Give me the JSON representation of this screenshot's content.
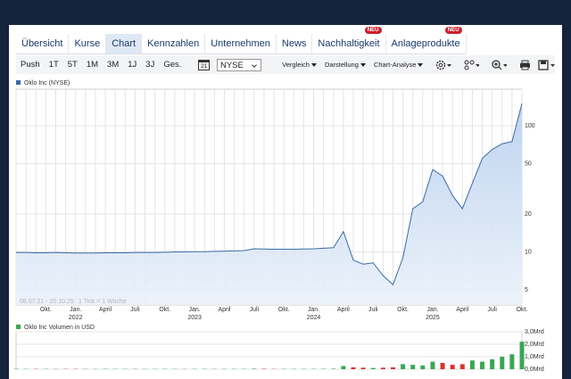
{
  "tabs": [
    {
      "label": "Übersicht"
    },
    {
      "label": "Kurse"
    },
    {
      "label": "Chart"
    },
    {
      "label": "Kennzahlen"
    },
    {
      "label": "Unternehmen"
    },
    {
      "label": "News"
    },
    {
      "label": "Nachhaltigkeit",
      "badge": "NEU"
    },
    {
      "label": "Anlageprodukte",
      "badge": "NEU"
    }
  ],
  "active_tab": 2,
  "toolbar": {
    "ranges": [
      "Push",
      "1T",
      "5T",
      "1M",
      "3M",
      "1J",
      "3J",
      "Ges."
    ],
    "calendar": "21",
    "exchange": "NYSE",
    "menus": [
      "Vergleich",
      "Darstellung",
      "Chart-Analyse"
    ]
  },
  "chart_data": [
    {
      "type": "line",
      "range_note": "08.07.21 - 20.10.25",
      "tick_note": "1 Tick = 1 Woche",
      "categories": [
        null,
        null,
        null,
        "Okt.",
        null,
        null,
        "Jan. 2022",
        null,
        null,
        "April",
        null,
        null,
        "Juli",
        null,
        null,
        "Okt.",
        null,
        null,
        "Jan. 2023",
        null,
        null,
        "April",
        null,
        null,
        "Juli",
        null,
        null,
        "Okt.",
        null,
        null,
        "Jan. 2024",
        null,
        null,
        "April",
        null,
        null,
        "Juli",
        null,
        null,
        "Okt.",
        null,
        null,
        "Jan. 2025",
        null,
        null,
        "April",
        null,
        null,
        "Juli",
        null,
        null,
        "Okt."
      ],
      "series": [
        {
          "name": "Oklo Inc (NYSE)",
          "color": "#3a6aa8",
          "values": [
            9.9,
            9.9,
            9.85,
            9.85,
            9.9,
            9.85,
            9.8,
            9.8,
            9.8,
            9.85,
            9.85,
            9.85,
            9.9,
            9.9,
            9.9,
            9.95,
            10.0,
            10.0,
            10.05,
            10.05,
            10.1,
            10.15,
            10.2,
            10.25,
            10.6,
            10.55,
            10.5,
            10.5,
            10.5,
            10.55,
            10.6,
            10.7,
            10.8,
            14.5,
            8.6,
            8.0,
            8.2,
            6.5,
            5.5,
            9,
            22,
            25,
            45,
            40,
            28,
            22,
            35,
            55,
            65,
            72,
            75,
            150
          ]
        }
      ],
      "log_scale": true,
      "ylim": [
        3.8,
        195
      ],
      "yticks": [
        5,
        10,
        20,
        50,
        100
      ],
      "grid": true
    },
    {
      "type": "bar",
      "series": [
        {
          "name": "Oklo Inc Volumen in USD",
          "color": "#3aa655",
          "up_color": "#3aa655",
          "down_color": "#d9332b",
          "values": [
            30000000,
            20000000,
            20000000,
            25000000,
            20000000,
            20000000,
            20000000,
            20000000,
            20000000,
            25000000,
            20000000,
            20000000,
            25000000,
            20000000,
            20000000,
            25000000,
            20000000,
            20000000,
            25000000,
            20000000,
            20000000,
            25000000,
            20000000,
            20000000,
            40000000,
            30000000,
            20000000,
            20000000,
            20000000,
            25000000,
            25000000,
            30000000,
            40000000,
            250000000,
            150000000,
            120000000,
            100000000,
            120000000,
            150000000,
            400000000,
            350000000,
            300000000,
            600000000,
            500000000,
            350000000,
            400000000,
            700000000,
            600000000,
            800000000,
            1000000000,
            1200000000,
            2200000000
          ]
        }
      ],
      "ylim": [
        0,
        3000000000
      ],
      "yticks": [
        {
          "value": 0,
          "label": "0,0Mrd"
        },
        {
          "value": 1000000000,
          "label": "1,0Mrd"
        },
        {
          "value": 2000000000,
          "label": "2,0Mrd"
        },
        {
          "value": 3000000000,
          "label": "3,0Mrd"
        }
      ],
      "grid": true
    }
  ]
}
